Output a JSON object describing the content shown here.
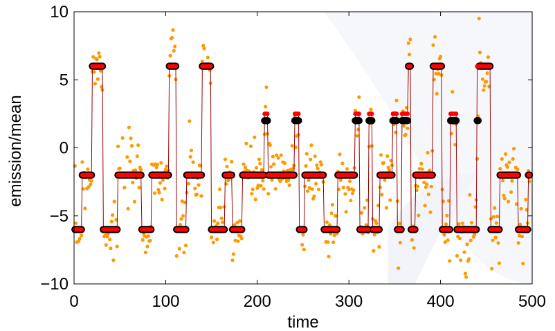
{
  "chart_data": {
    "type": "scatter",
    "xlabel": "time",
    "ylabel": "emission/mean",
    "xlim": [
      0,
      500
    ],
    "ylim": [
      -10,
      10
    ],
    "xticks": [
      0,
      100,
      200,
      300,
      400,
      500
    ],
    "yticks": [
      -10,
      -5,
      0,
      5,
      10
    ],
    "xtick_labels": [
      "0",
      "100",
      "200",
      "300",
      "400",
      "500"
    ],
    "ytick_labels": [
      "−10",
      "−5",
      "0",
      "5",
      "10"
    ],
    "grid": false,
    "colors": {
      "observations": "#ff9900",
      "true_state": "#000000",
      "estimated_state": "#ff0000",
      "estimate_line": "#990000"
    },
    "state_segments": [
      {
        "x0": 1,
        "x1": 8,
        "y": -6
      },
      {
        "x0": 9,
        "x1": 19,
        "y": -2
      },
      {
        "x0": 20,
        "x1": 31,
        "y": 6
      },
      {
        "x0": 32,
        "x1": 47,
        "y": -6
      },
      {
        "x0": 48,
        "x1": 73,
        "y": -2
      },
      {
        "x0": 74,
        "x1": 84,
        "y": -6
      },
      {
        "x0": 85,
        "x1": 103,
        "y": -2
      },
      {
        "x0": 104,
        "x1": 111,
        "y": 6
      },
      {
        "x0": 112,
        "x1": 122,
        "y": -6
      },
      {
        "x0": 123,
        "x1": 139,
        "y": -2
      },
      {
        "x0": 140,
        "x1": 149,
        "y": 6
      },
      {
        "x0": 150,
        "x1": 164,
        "y": -6
      },
      {
        "x0": 165,
        "x1": 172,
        "y": -2
      },
      {
        "x0": 173,
        "x1": 183,
        "y": -6
      },
      {
        "x0": 184,
        "x1": 207,
        "y": -2
      },
      {
        "x0": 208,
        "x1": 211,
        "y": 2
      },
      {
        "x0": 212,
        "x1": 240,
        "y": -2
      },
      {
        "x0": 241,
        "x1": 245,
        "y": 2
      },
      {
        "x0": 246,
        "x1": 251,
        "y": -6
      },
      {
        "x0": 252,
        "x1": 272,
        "y": -2
      },
      {
        "x0": 273,
        "x1": 287,
        "y": -6
      },
      {
        "x0": 288,
        "x1": 306,
        "y": -2
      },
      {
        "x0": 307,
        "x1": 311,
        "y": 2
      },
      {
        "x0": 312,
        "x1": 321,
        "y": -6
      },
      {
        "x0": 322,
        "x1": 325,
        "y": 2
      },
      {
        "x0": 326,
        "x1": 333,
        "y": -6
      },
      {
        "x0": 334,
        "x1": 347,
        "y": -2
      },
      {
        "x0": 348,
        "x1": 352,
        "y": 2
      },
      {
        "x0": 353,
        "x1": 357,
        "y": -6
      },
      {
        "x0": 358,
        "x1": 364,
        "y": 2
      },
      {
        "x0": 365,
        "x1": 367,
        "y": 6
      },
      {
        "x0": 368,
        "x1": 372,
        "y": -6
      },
      {
        "x0": 373,
        "x1": 391,
        "y": -2
      },
      {
        "x0": 392,
        "x1": 401,
        "y": 6
      },
      {
        "x0": 402,
        "x1": 410,
        "y": -6
      },
      {
        "x0": 411,
        "x1": 417,
        "y": 2
      },
      {
        "x0": 418,
        "x1": 439,
        "y": -6
      },
      {
        "x0": 440,
        "x1": 441,
        "y": 2
      },
      {
        "x0": 442,
        "x1": 454,
        "y": 6
      },
      {
        "x0": 455,
        "x1": 464,
        "y": -6
      },
      {
        "x0": 465,
        "x1": 484,
        "y": -2
      },
      {
        "x0": 485,
        "x1": 495,
        "y": -6
      },
      {
        "x0": 496,
        "x1": 497,
        "y": -2
      }
    ],
    "estimate_overrides": [
      {
        "x0": 208,
        "x1": 211,
        "y": 2.5
      },
      {
        "x0": 241,
        "x1": 245,
        "y": 2.5
      },
      {
        "x0": 307,
        "x1": 311,
        "y": 2.5
      },
      {
        "x0": 322,
        "x1": 325,
        "y": 2.5
      },
      {
        "x0": 348,
        "x1": 352,
        "y": 2.5
      },
      {
        "x0": 358,
        "x1": 364,
        "y": 2.5
      },
      {
        "x0": 411,
        "x1": 417,
        "y": 2.5
      },
      {
        "x0": 440,
        "x1": 441,
        "y": 6
      }
    ],
    "noise_sd": 1.2,
    "observation_seed": 7
  }
}
